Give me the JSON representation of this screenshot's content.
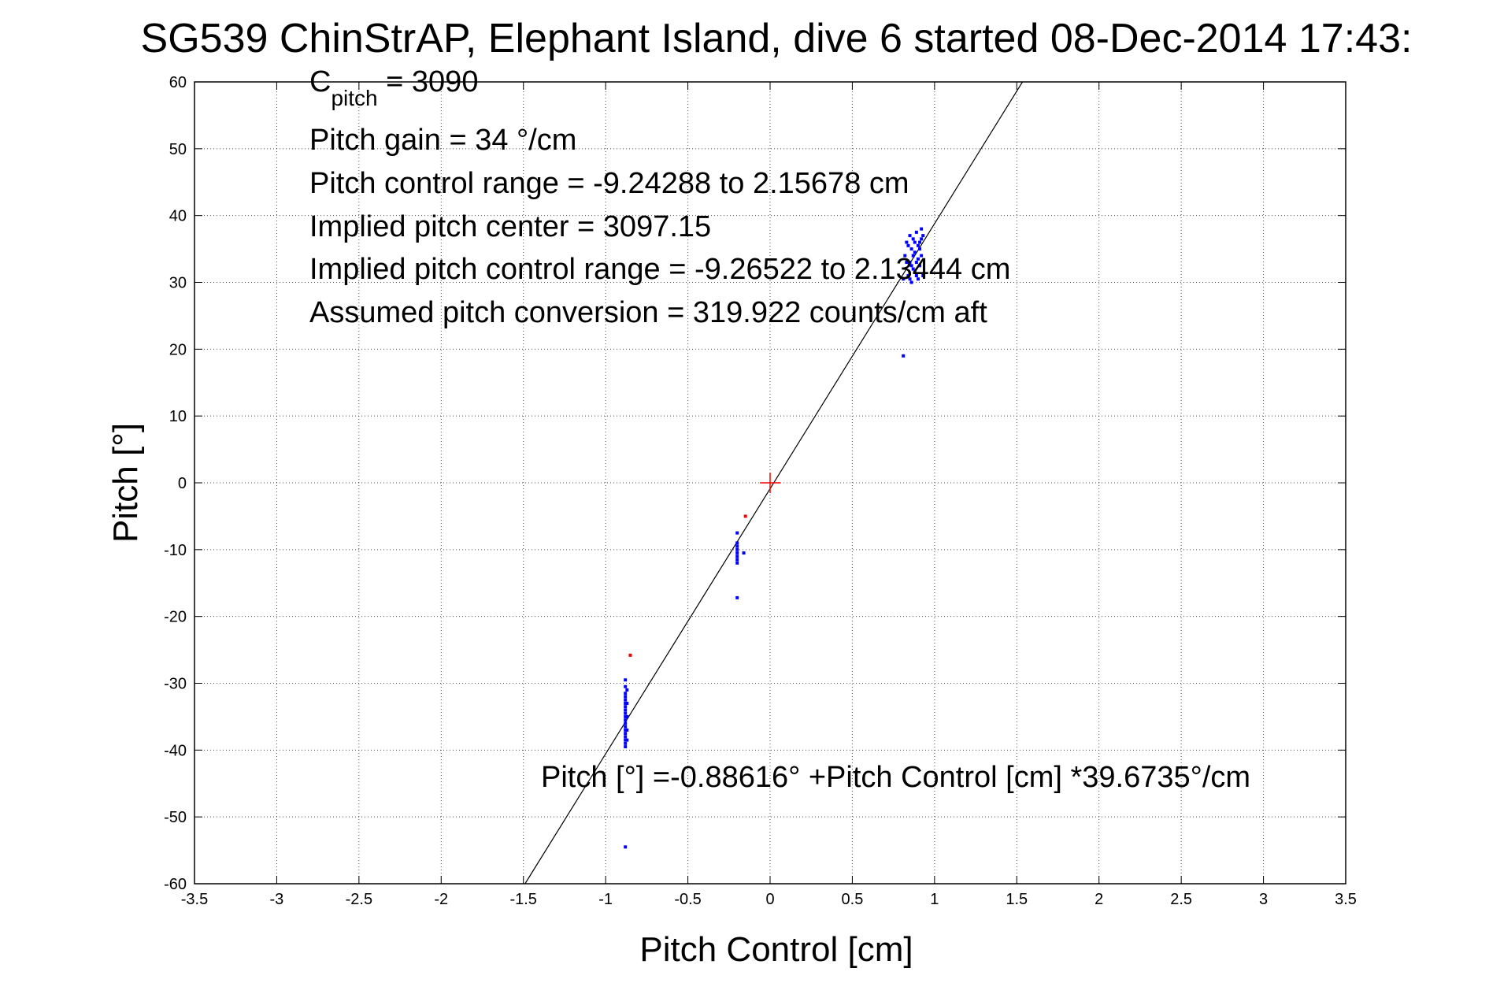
{
  "chart_data": {
    "type": "scatter",
    "title": "SG539 ChinStrAP, Elephant Island, dive 6 started 08-Dec-2014 17:43:",
    "xlabel": "Pitch Control [cm]",
    "ylabel": "Pitch [°]",
    "xlim": [
      -3.5,
      3.5
    ],
    "ylim": [
      -60,
      60
    ],
    "xticks": [
      -3.5,
      -3,
      -2.5,
      -2,
      -1.5,
      -1,
      -0.5,
      0,
      0.5,
      1,
      1.5,
      2,
      2.5,
      3,
      3.5
    ],
    "yticks": [
      -60,
      -50,
      -40,
      -30,
      -20,
      -10,
      0,
      10,
      20,
      30,
      40,
      50,
      60
    ],
    "xtick_labels": [
      "-3.5",
      "-3",
      "-2.5",
      "-2",
      "-1.5",
      "-1",
      "-0.5",
      "0",
      "0.5",
      "1",
      "1.5",
      "2",
      "2.5",
      "3",
      "3.5"
    ],
    "ytick_labels": [
      "-60",
      "-50",
      "-40",
      "-30",
      "-20",
      "-10",
      "0",
      "10",
      "20",
      "30",
      "40",
      "50",
      "60"
    ],
    "grid": true,
    "fit_line": {
      "intercept": -0.88616,
      "slope": 39.6735
    },
    "annotations": {
      "c_pitch_main": "C",
      "c_pitch_sub": "pitch",
      "c_pitch_rest": " = 3090",
      "pitch_gain": "Pitch gain = 34 °/cm",
      "pitch_control_range": "Pitch control range = -9.24288 to 2.15678 cm",
      "implied_pitch_center": "Implied pitch center = 3097.15",
      "implied_pitch_control_range": "Implied pitch control range = -9.26522 to 2.13444 cm",
      "assumed_pitch_conversion": "Assumed pitch conversion = 319.922 counts/cm aft",
      "fit_equation": "Pitch [°] =-0.88616° +Pitch Control [cm] *39.6735°/cm"
    },
    "center_marker": {
      "x": 0,
      "y": 0,
      "color": "#ff0000"
    },
    "series": [
      {
        "color": "#0000ff",
        "points": [
          [
            -0.88,
            -54.5
          ],
          [
            -0.88,
            -29.5
          ],
          [
            -0.88,
            -30.5
          ],
          [
            -0.88,
            -31.5
          ],
          [
            -0.88,
            -32
          ],
          [
            -0.88,
            -32.5
          ],
          [
            -0.88,
            -33
          ],
          [
            -0.88,
            -33.5
          ],
          [
            -0.88,
            -34
          ],
          [
            -0.88,
            -34.5
          ],
          [
            -0.88,
            -35
          ],
          [
            -0.88,
            -35.5
          ],
          [
            -0.88,
            -36
          ],
          [
            -0.88,
            -36.5
          ],
          [
            -0.88,
            -37
          ],
          [
            -0.88,
            -37.5
          ],
          [
            -0.88,
            -38
          ],
          [
            -0.88,
            -38.5
          ],
          [
            -0.88,
            -39
          ],
          [
            -0.88,
            -39.5
          ],
          [
            -0.87,
            -31
          ],
          [
            -0.87,
            -33
          ],
          [
            -0.87,
            -35
          ],
          [
            -0.87,
            -37
          ],
          [
            -0.87,
            -38.5
          ],
          [
            -0.2,
            -7.5
          ],
          [
            -0.2,
            -9
          ],
          [
            -0.2,
            -9.5
          ],
          [
            -0.2,
            -10
          ],
          [
            -0.2,
            -10.5
          ],
          [
            -0.2,
            -11
          ],
          [
            -0.2,
            -11.5
          ],
          [
            -0.2,
            -12
          ],
          [
            -0.2,
            -17.2
          ],
          [
            -0.16,
            -10.5
          ],
          [
            0.81,
            19
          ],
          [
            0.81,
            30.5
          ],
          [
            0.82,
            34
          ],
          [
            0.83,
            36
          ],
          [
            0.84,
            31
          ],
          [
            0.85,
            33
          ],
          [
            0.85,
            37
          ],
          [
            0.86,
            30
          ],
          [
            0.86,
            35
          ],
          [
            0.87,
            32
          ],
          [
            0.87,
            36.5
          ],
          [
            0.88,
            31.5
          ],
          [
            0.88,
            34.5
          ],
          [
            0.89,
            33
          ],
          [
            0.89,
            37.5
          ],
          [
            0.9,
            30.5
          ],
          [
            0.9,
            35.5
          ],
          [
            0.91,
            32.5
          ],
          [
            0.91,
            36
          ],
          [
            0.92,
            34
          ],
          [
            0.92,
            38
          ],
          [
            0.93,
            31
          ],
          [
            0.93,
            37
          ],
          [
            0.84,
            35.5
          ],
          [
            0.86,
            32.5
          ],
          [
            0.88,
            36
          ],
          [
            0.9,
            33.5
          ],
          [
            0.92,
            36.5
          ],
          [
            0.83,
            33
          ],
          [
            0.87,
            34
          ],
          [
            0.89,
            31
          ],
          [
            0.91,
            35
          ],
          [
            0.85,
            30.5
          ]
        ]
      },
      {
        "color": "#ff0000",
        "points": [
          [
            -0.85,
            -25.8
          ],
          [
            -0.15,
            -5
          ]
        ]
      }
    ]
  }
}
